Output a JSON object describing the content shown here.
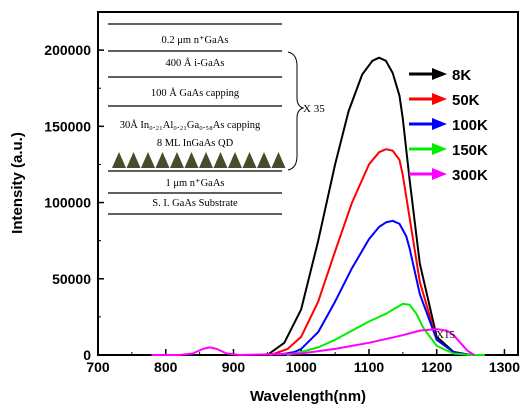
{
  "chart_data": {
    "type": "line",
    "xlabel": "Wavelength(nm)",
    "ylabel": "Intensity (a.u.)",
    "xlim": [
      700,
      1320
    ],
    "ylim": [
      0,
      225000
    ],
    "xticks": [
      700,
      800,
      900,
      1000,
      1100,
      1200,
      1300
    ],
    "yticks": [
      0,
      50000,
      100000,
      150000,
      200000
    ],
    "xtick_labels": [
      "700",
      "800",
      "900",
      "1000",
      "1100",
      "1200",
      "1300"
    ],
    "ytick_labels": [
      "0",
      "50000",
      "100000",
      "150000",
      "200000"
    ],
    "grid": false,
    "legend_position": "top-right",
    "annotations": {
      "x15": "X15",
      "x35": "X 35"
    },
    "series": [
      {
        "name": "8K",
        "color": "#000000",
        "x": [
          950,
          975,
          1000,
          1025,
          1050,
          1070,
          1090,
          1105,
          1115,
          1125,
          1135,
          1145,
          1150,
          1160,
          1175,
          1200,
          1225,
          1250,
          1270
        ],
        "y": [
          0,
          8000,
          30000,
          75000,
          125000,
          160000,
          184000,
          193000,
          195000,
          193000,
          185000,
          170000,
          155000,
          115000,
          60000,
          12000,
          2000,
          0,
          0
        ]
      },
      {
        "name": "50K",
        "color": "#ff0000",
        "x": [
          955,
          980,
          1000,
          1025,
          1050,
          1075,
          1100,
          1115,
          1125,
          1135,
          1145,
          1150,
          1160,
          1175,
          1200,
          1225,
          1250,
          1270
        ],
        "y": [
          0,
          4000,
          12000,
          35000,
          68000,
          100000,
          125000,
          133000,
          135000,
          134000,
          128000,
          118000,
          90000,
          48000,
          10000,
          2000,
          0,
          0
        ]
      },
      {
        "name": "100K",
        "color": "#0000ff",
        "x": [
          965,
          990,
          1000,
          1025,
          1050,
          1075,
          1100,
          1115,
          1125,
          1135,
          1145,
          1155,
          1160,
          1175,
          1200,
          1225,
          1250,
          1270
        ],
        "y": [
          0,
          2000,
          4000,
          15000,
          35000,
          57000,
          76000,
          84000,
          87000,
          88000,
          86000,
          78000,
          70000,
          40000,
          10000,
          2000,
          0,
          0
        ]
      },
      {
        "name": "150K",
        "color": "#00ee00",
        "x": [
          980,
          1000,
          1025,
          1050,
          1075,
          1100,
          1125,
          1140,
          1150,
          1160,
          1170,
          1180,
          1200,
          1225,
          1250,
          1270
        ],
        "y": [
          0,
          2000,
          5000,
          10000,
          16000,
          22000,
          27000,
          31000,
          33500,
          33000,
          27000,
          18000,
          6000,
          1000,
          0,
          0
        ]
      },
      {
        "name": "300K",
        "color": "#ff00ff",
        "x": [
          780,
          820,
          840,
          855,
          865,
          875,
          890,
          910,
          1000,
          1050,
          1100,
          1150,
          1175,
          1200,
          1215,
          1225,
          1235,
          1245,
          1255
        ],
        "y": [
          0,
          0,
          1000,
          4000,
          5000,
          4000,
          1000,
          0,
          1000,
          4000,
          8000,
          13000,
          16000,
          17000,
          16000,
          13000,
          8000,
          3000,
          0
        ]
      }
    ]
  },
  "structure": {
    "layers": [
      "0.2 μm n⁺GaAs",
      "400 Å i-GaAs",
      "100 Å GaAs capping",
      "30Å In₀.₂₁Al₀.₂₁Ga₀.₅₈As capping",
      "8 ML InGaAs QD",
      "1 μm n⁺GaAs",
      "S. I. GaAs Substrate"
    ],
    "qd_fill": "#4a4a2c"
  }
}
